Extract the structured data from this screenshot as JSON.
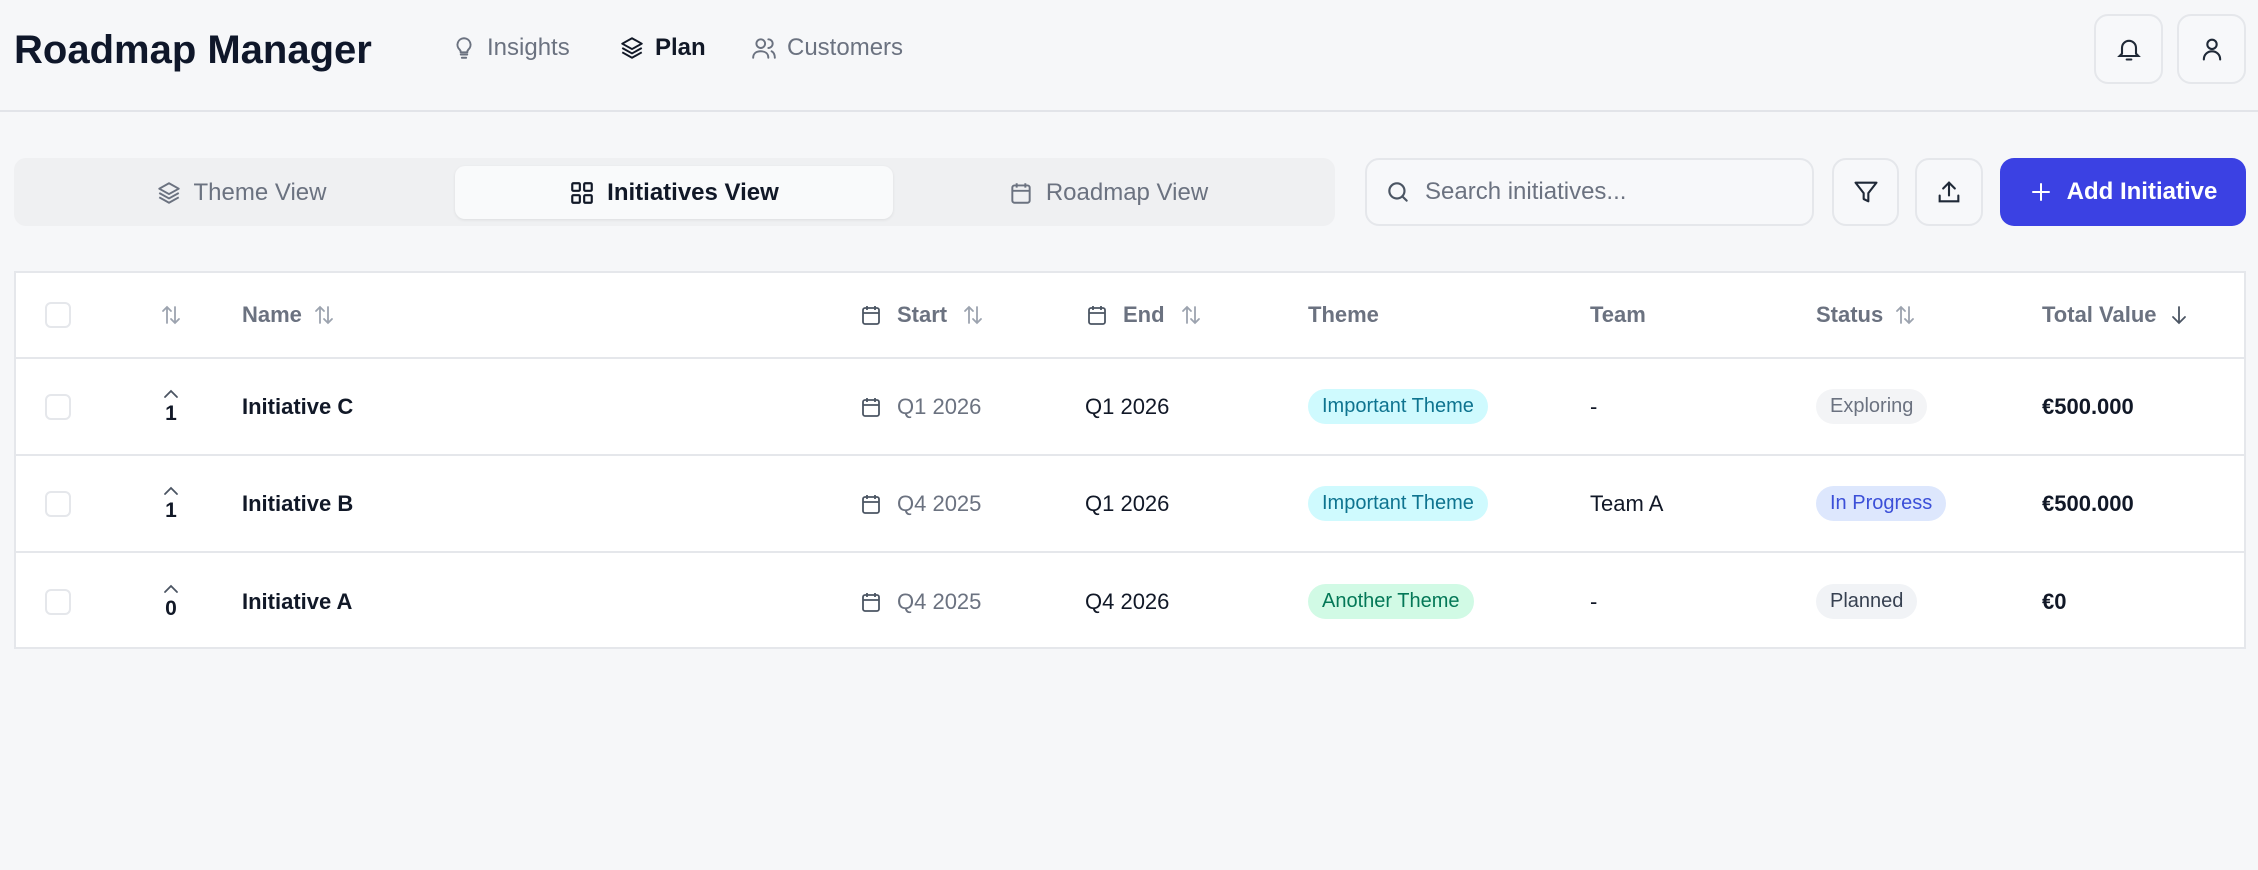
{
  "app": {
    "title": "Roadmap Manager"
  },
  "nav": [
    {
      "label": "Insights",
      "icon": "lightbulb-icon"
    },
    {
      "label": "Plan",
      "icon": "layers-icon",
      "active": true
    },
    {
      "label": "Customers",
      "icon": "users-icon"
    }
  ],
  "header_actions": {
    "notifications_icon": "bell-icon",
    "profile_icon": "user-icon"
  },
  "view_tabs": [
    {
      "label": "Theme View",
      "icon": "layers-icon"
    },
    {
      "label": "Initiatives View",
      "icon": "grid-icon",
      "active": true
    },
    {
      "label": "Roadmap View",
      "icon": "calendar-icon"
    }
  ],
  "toolbar": {
    "search_placeholder": "Search initiatives...",
    "search_value": "",
    "filter_icon": "filter-icon",
    "export_icon": "upload-icon",
    "add_label": "Add Initiative"
  },
  "colors": {
    "accent": "#3b41e3"
  },
  "table": {
    "columns": {
      "name": "Name",
      "start": "Start",
      "end": "End",
      "theme": "Theme",
      "team": "Team",
      "status": "Status",
      "total_value": "Total Value"
    },
    "rows": [
      {
        "votes": "1",
        "name": "Initiative C",
        "start": "Q1 2026",
        "end": "Q1 2026",
        "theme": "Important Theme",
        "theme_color": "#cffafe",
        "team": "-",
        "status": "Exploring",
        "total_value": "€500.000"
      },
      {
        "votes": "1",
        "name": "Initiative B",
        "start": "Q4 2025",
        "end": "Q1 2026",
        "theme": "Important Theme",
        "theme_color": "#cffafe",
        "team": "Team A",
        "status": "In Progress",
        "total_value": "€500.000"
      },
      {
        "votes": "0",
        "name": "Initiative A",
        "start": "Q4 2025",
        "end": "Q4 2026",
        "theme": "Another Theme",
        "theme_color": "#d1fae5",
        "team": "-",
        "status": "Planned",
        "total_value": "€0"
      }
    ]
  }
}
